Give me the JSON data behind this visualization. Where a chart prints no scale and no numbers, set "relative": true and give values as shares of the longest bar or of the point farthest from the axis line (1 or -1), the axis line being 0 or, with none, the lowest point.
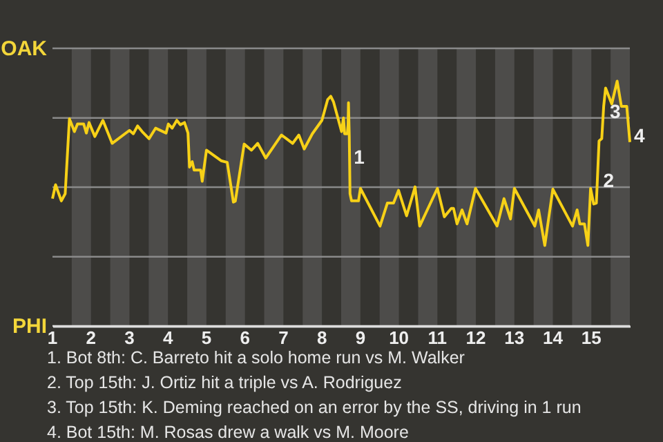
{
  "chart_data": {
    "type": "line",
    "relative": true,
    "x": [
      1.0,
      1.08,
      1.23,
      1.33,
      1.44,
      1.57,
      1.65,
      1.81,
      1.88,
      1.95,
      2.1,
      2.31,
      2.55,
      3.0,
      3.1,
      3.21,
      3.33,
      3.51,
      3.68,
      3.95,
      4.01,
      4.11,
      4.23,
      4.32,
      4.43,
      4.52,
      4.56,
      4.63,
      4.68,
      4.85,
      4.89,
      5.0,
      5.38,
      5.54,
      5.7,
      5.75,
      5.98,
      6.17,
      6.33,
      6.54,
      6.95,
      7.08,
      7.24,
      7.4,
      7.54,
      7.75,
      8.0,
      8.15,
      8.23,
      8.3,
      8.51,
      8.56,
      8.59,
      8.66,
      8.68,
      8.69,
      8.71,
      8.72,
      8.73,
      8.77,
      8.95,
      9.0,
      9.51,
      9.7,
      9.86,
      9.99,
      10.2,
      10.42,
      10.54,
      11.0,
      11.18,
      11.36,
      11.42,
      11.51,
      11.64,
      11.77,
      11.99,
      12.55,
      12.73,
      12.9,
      13.0,
      13.53,
      13.63,
      13.79,
      14.0,
      14.51,
      14.63,
      14.7,
      14.82,
      14.91,
      14.98,
      15.06,
      15.13,
      15.2,
      15.27,
      15.32,
      15.37,
      15.53,
      15.67,
      15.78,
      15.92,
      16.0
    ],
    "series": [
      {
        "color": "#f7d117",
        "values": [
          0.52,
          0.577,
          0.511,
          0.54,
          0.846,
          0.794,
          0.825,
          0.825,
          0.788,
          0.831,
          0.774,
          0.84,
          0.746,
          0.799,
          0.785,
          0.817,
          0.794,
          0.765,
          0.808,
          0.788,
          0.825,
          0.808,
          0.84,
          0.822,
          0.831,
          0.788,
          0.649,
          0.671,
          0.637,
          0.637,
          0.591,
          0.718,
          0.675,
          0.668,
          0.506,
          0.51,
          0.743,
          0.718,
          0.746,
          0.686,
          0.78,
          0.765,
          0.746,
          0.78,
          0.723,
          0.785,
          0.84,
          0.925,
          0.938,
          0.916,
          0.794,
          0.85,
          0.785,
          0.785,
          0.822,
          0.912,
          0.78,
          0.662,
          0.54,
          0.511,
          0.511,
          0.562,
          0.408,
          0.502,
          0.502,
          0.554,
          0.45,
          0.568,
          0.408,
          0.562,
          0.446,
          0.48,
          0.48,
          0.417,
          0.474,
          0.417,
          0.562,
          0.408,
          0.52,
          0.437,
          0.562,
          0.408,
          0.474,
          0.329,
          0.559,
          0.408,
          0.474,
          0.417,
          0.417,
          0.329,
          0.562,
          0.498,
          0.502,
          0.756,
          0.765,
          0.897,
          0.972,
          0.907,
          1,
          0.897,
          0.897,
          0.751
        ]
      }
    ],
    "xlim": [
      1,
      16
    ],
    "xticks": [
      1,
      2,
      3,
      4,
      5,
      6,
      7,
      8,
      9,
      10,
      11,
      12,
      13,
      14,
      15
    ],
    "ref_lines": [
      {
        "axis": "y",
        "value": 1.134,
        "label": "OAK",
        "color": "#8a8a8a"
      },
      {
        "axis": "y",
        "value": 0.85,
        "color": "#8a8a8a"
      },
      {
        "axis": "y",
        "value": 0.567,
        "color": "#8a8a8a"
      },
      {
        "axis": "y",
        "value": 0.283,
        "color": "#8a8a8a"
      },
      {
        "axis": "y",
        "value": 0,
        "label": "PHI",
        "color": "#dddddd"
      }
    ],
    "bands": [
      {
        "axis": "x",
        "from": 1.5,
        "to": 2,
        "color": "#4d4c4a"
      },
      {
        "axis": "x",
        "from": 2.5,
        "to": 3,
        "color": "#4d4c4a"
      },
      {
        "axis": "x",
        "from": 3.5,
        "to": 4,
        "color": "#4d4c4a"
      },
      {
        "axis": "x",
        "from": 4.5,
        "to": 5,
        "color": "#4d4c4a"
      },
      {
        "axis": "x",
        "from": 5.5,
        "to": 6,
        "color": "#4d4c4a"
      },
      {
        "axis": "x",
        "from": 6.5,
        "to": 7,
        "color": "#4d4c4a"
      },
      {
        "axis": "x",
        "from": 7.5,
        "to": 8,
        "color": "#4d4c4a"
      },
      {
        "axis": "x",
        "from": 8.5,
        "to": 9,
        "color": "#4d4c4a"
      },
      {
        "axis": "x",
        "from": 9.5,
        "to": 10,
        "color": "#4d4c4a"
      },
      {
        "axis": "x",
        "from": 10.5,
        "to": 11,
        "color": "#4d4c4a"
      },
      {
        "axis": "x",
        "from": 11.5,
        "to": 12,
        "color": "#4d4c4a"
      },
      {
        "axis": "x",
        "from": 12.5,
        "to": 13,
        "color": "#4d4c4a"
      },
      {
        "axis": "x",
        "from": 13.5,
        "to": 14,
        "color": "#4d4c4a"
      },
      {
        "axis": "x",
        "from": 14.5,
        "to": 15,
        "color": "#4d4c4a"
      },
      {
        "axis": "x",
        "from": 15.5,
        "to": 16,
        "color": "#4d4c4a"
      }
    ],
    "annotations": [
      {
        "text": "1",
        "x": 8.72,
        "y": 0.662
      },
      {
        "text": "2",
        "x": 15.2,
        "y": 0.567
      },
      {
        "text": "3",
        "x": 15.37,
        "y": 0.85
      },
      {
        "text": "4",
        "x": 16,
        "y": 0.751
      },
      "1. Bot 8th: C. Barreto hit a solo home run vs M. Walker",
      "2. Top 15th: J. Ortiz hit a triple vs A. Rodriguez",
      "3. Top 15th: K. Deming reached on an error by the SS, driving in 1 run",
      "4. Bot 15th: M. Rosas drew a walk vs M. Moore"
    ]
  }
}
